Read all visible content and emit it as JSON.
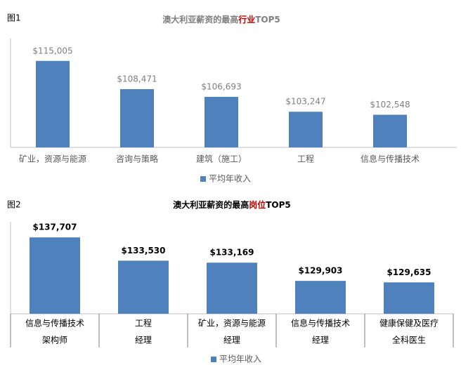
{
  "chart_data": [
    {
      "type": "bar",
      "label": "图1",
      "title_parts": [
        "澳大利亚薪资的最高",
        "行业",
        "TOP5"
      ],
      "title_highlight": 1,
      "title_color": "#7f7f7f",
      "highlight_color": "#c00000",
      "title_bold": false,
      "categories": [
        [
          "矿业，资源与能源"
        ],
        [
          "咨询与策略"
        ],
        [
          "建筑（施工）"
        ],
        [
          "工程"
        ],
        [
          "信息与传播技术"
        ]
      ],
      "series": [
        {
          "name": "平均年收入",
          "color": "#4f81bd",
          "values": [
            115005,
            108471,
            106693,
            103247,
            102548
          ],
          "value_labels": [
            "$115,005",
            "$108,471",
            "$106,693",
            "$103,247",
            "$102,548"
          ]
        }
      ],
      "ylim": [
        95000,
        120000
      ],
      "value_label_color": "#7f7f7f",
      "table_lines": false
    },
    {
      "type": "bar",
      "label": "图2",
      "title_parts": [
        "澳大利亚薪资的最高",
        "岗位",
        "TOP5"
      ],
      "title_highlight": 1,
      "title_color": "#000000",
      "highlight_color": "#c00000",
      "title_bold": true,
      "categories": [
        [
          "信息与传播技术",
          "架构师"
        ],
        [
          "工程",
          "经理"
        ],
        [
          "矿业，资源与能源",
          "经理"
        ],
        [
          "信息与传播技术",
          "经理"
        ],
        [
          "健康保健及医疗",
          "全科医生"
        ]
      ],
      "series": [
        {
          "name": "平均年收入",
          "color": "#4f81bd",
          "values": [
            137707,
            133530,
            133169,
            129903,
            129635
          ],
          "value_labels": [
            "$137,707",
            "$133,530",
            "$133,169",
            "$129,903",
            "$129,635"
          ]
        }
      ],
      "ylim": [
        124000,
        140000
      ],
      "value_label_color": "#000000",
      "table_lines": true
    }
  ]
}
